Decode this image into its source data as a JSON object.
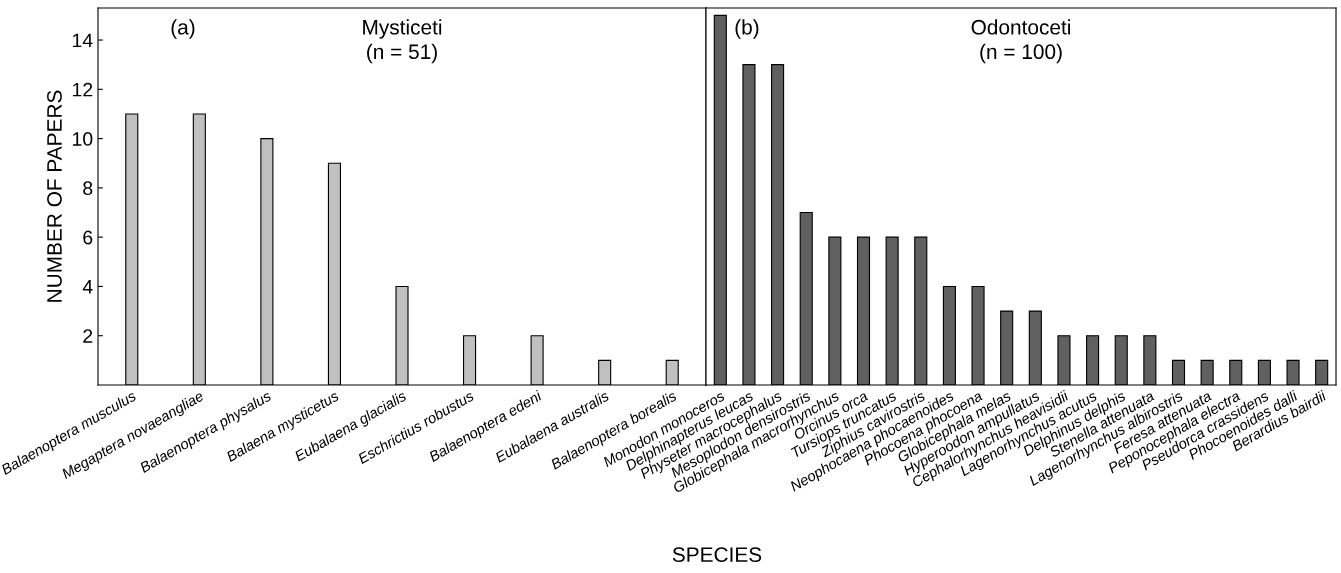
{
  "chart_data": [
    {
      "type": "bar",
      "title": "Mysticeti",
      "subtitle": "(n = 51)",
      "ylabel": "NUMBER OF PAPERS",
      "xlabel": "SPECIES",
      "annotations": [
        "(a)"
      ],
      "categories": [
        "Balaenoptera musculus",
        "Megaptera novaeangliae",
        "Balaenoptera physalus",
        "Balaena mysticetus",
        "Eubalaena glacialis",
        "Eschrictius robustus",
        "Balaenoptera edeni",
        "Eubalaena australis",
        "Balaenoptera borealis"
      ],
      "values": [
        11,
        11,
        10,
        9,
        4,
        2,
        2,
        1,
        1
      ],
      "color": "#c0c0c0",
      "ylim": [
        0,
        15.3
      ],
      "yticks": [
        2,
        4,
        6,
        8,
        10,
        12,
        14
      ],
      "grid": false,
      "legend": false
    },
    {
      "type": "bar",
      "title": "Odontoceti",
      "subtitle": "(n = 100)",
      "annotations": [
        "(b)"
      ],
      "categories": [
        "Monodon monoceros",
        "Delphinapterus leucas",
        "Physeter macrocephalus",
        "Mesoplodon densirostris",
        "Globicephala macrorhynchus",
        "Orcinus orca",
        "Tursiops truncatus",
        "Ziphius cavirostris",
        "Neophocaena phocaenoides",
        "Phocoena phocoena",
        "Globicephala melas",
        "Hyperoodon ampullatus",
        "Cephalorhynchus heavisidii",
        "Lagenorhynchus acutus",
        "Delphinus delphis",
        "Stenella attenuata",
        "Lagenorhynchus albirostris",
        "Feresa attenuata",
        "Peponocephala electra",
        "Pseudorca crassidens",
        "Phocoenoides dalli",
        "Berardius bairdii"
      ],
      "values": [
        15,
        13,
        13,
        7,
        6,
        6,
        6,
        6,
        4,
        4,
        3,
        3,
        2,
        2,
        2,
        2,
        1,
        1,
        1,
        1,
        1,
        1
      ],
      "color": "#606060",
      "ylim": [
        0,
        15.3
      ],
      "yticks": [
        2,
        4,
        6,
        8,
        10,
        12,
        14
      ],
      "tick_labels": "x",
      "grid": false,
      "legend": false
    }
  ]
}
